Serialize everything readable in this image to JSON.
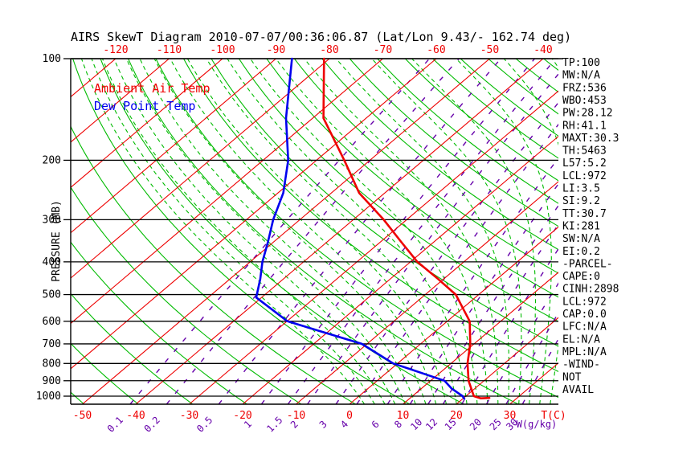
{
  "title": "AIRS SkewT Diagram 2010-07-07/00:36:06.87 (Lat/Lon 9.43/- 162.74 deg)",
  "legend": {
    "temperature_label": "Ambient Air Temp",
    "dewpoint_label": "Dew Point Temp"
  },
  "axes": {
    "pressure_axis_label": "PRESSURE (MB)",
    "pressure_ticks": [
      100,
      200,
      300,
      400,
      500,
      600,
      700,
      800,
      900,
      1000
    ],
    "top_temp_labels": [
      -120,
      -110,
      -100,
      -90,
      -80,
      -70,
      -60,
      -50,
      -40
    ],
    "bottom_temp_labels": [
      -50,
      -40,
      -30,
      -20,
      -10,
      0,
      10,
      20,
      30
    ],
    "temp_unit_label": "T(C)",
    "mixing_unit_label": "W(g/kg)"
  },
  "stats_panel": {
    "lines": [
      "TP:100",
      "MW:N/A",
      "FRZ:536",
      "WBO:453",
      "PW:28.12",
      "RH:41.1",
      "MAXT:30.3",
      "TH:5463",
      "L57:5.2",
      "LCL:972",
      "LI:3.5",
      "SI:9.2",
      "TT:30.7",
      "KI:281",
      "SW:N/A",
      "EI:0.2",
      "-PARCEL-",
      "CAPE:0",
      "CINH:2898",
      "LCL:972",
      "CAP:0.0",
      "LFC:N/A",
      "EL:N/A",
      "MPL:N/A",
      "-WIND-",
      "NOT",
      "AVAIL"
    ]
  },
  "colors": {
    "isotherm_red": "#ee0000",
    "label_red": "#ee0000",
    "adiabat_green": "#00bb00",
    "mixing_purple": "#6600aa",
    "profile_red": "#ee0000",
    "profile_blue": "#0000ee",
    "axis_black": "#000000",
    "background": "#ffffff"
  },
  "chart_data": {
    "type": "line",
    "subtype": "skewt-log-p",
    "title": "AIRS SkewT Diagram 2010-07-07/00:36:06.87 (Lat/Lon 9.43/- 162.74 deg)",
    "xlabel": "T(C)",
    "ylabel": "PRESSURE (MB)",
    "pressure_range_hpa": [
      100,
      1057
    ],
    "bottom_temp_axis_range_c": [
      -50,
      30
    ],
    "top_temp_axis_range_c": [
      -120,
      -40
    ],
    "pressure_gridlines_hpa": [
      100,
      200,
      300,
      400,
      500,
      600,
      700,
      800,
      900,
      1000
    ],
    "isotherms_c": [
      -130,
      -120,
      -110,
      -100,
      -90,
      -80,
      -70,
      -60,
      -50,
      -40,
      -30,
      -20,
      -10,
      0,
      10,
      20,
      30,
      40
    ],
    "dry_adiabats_theta_k": [
      220,
      230,
      240,
      250,
      260,
      270,
      280,
      290,
      300,
      310,
      320,
      330,
      340,
      350,
      360,
      370,
      380,
      390,
      400,
      410,
      420,
      430,
      440,
      450,
      460
    ],
    "moist_adiabats_thetaw_c": [
      0,
      2,
      4,
      6,
      8,
      10,
      12,
      14,
      16,
      18,
      20,
      22,
      24,
      26,
      28,
      30,
      32,
      34,
      36,
      38,
      40,
      42,
      44
    ],
    "mixing_ratio_lines_gkg": [
      0.1,
      0.2,
      0.5,
      1,
      1.5,
      2,
      3,
      4,
      6,
      8,
      10,
      12,
      15,
      20,
      25,
      30
    ],
    "series": [
      {
        "name": "Ambient Air Temp",
        "pressure_hpa": [
          100,
          150,
          200,
          250,
          300,
          350,
          400,
          450,
          500,
          600,
          700,
          800,
          900,
          1000,
          1015,
          1012
        ],
        "temp_c": [
          -81,
          -68,
          -54.8,
          -44.8,
          -34.3,
          -26,
          -18.7,
          -11,
          -4.3,
          4.2,
          9.3,
          13.1,
          17.1,
          21.5,
          23.3,
          24.8
        ]
      },
      {
        "name": "Dew Point Temp",
        "pressure_hpa": [
          100,
          150,
          200,
          250,
          300,
          350,
          400,
          450,
          510,
          600,
          700,
          800,
          900,
          950,
          1000,
          1018
        ],
        "temp_c": [
          -87,
          -75,
          -65.3,
          -59,
          -55,
          -51,
          -47.7,
          -44.3,
          -41,
          -29.9,
          -11,
          -0.8,
          12.6,
          15.7,
          19.4,
          20.3
        ]
      }
    ]
  }
}
